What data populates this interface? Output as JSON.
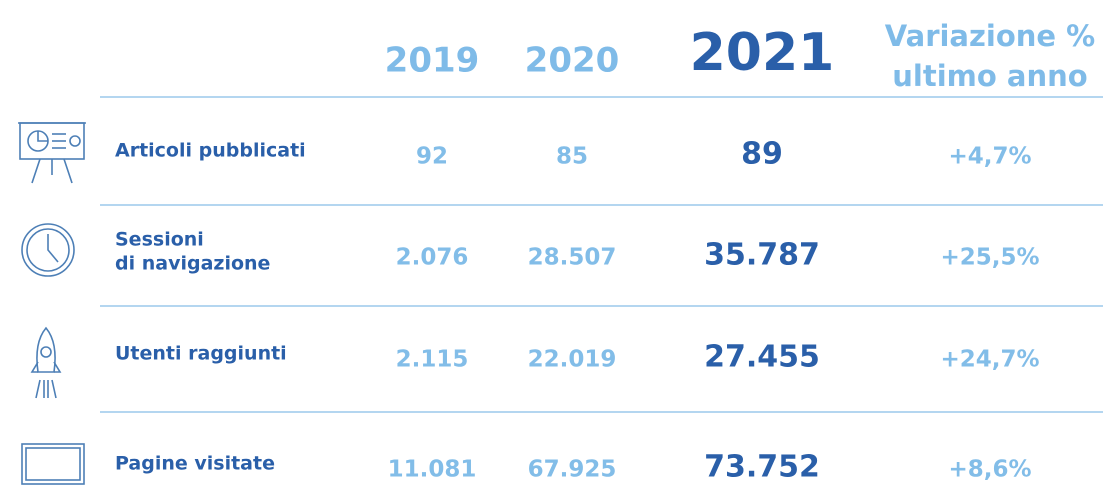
{
  "table": {
    "header": [
      "2019",
      "2020",
      "2021",
      [
        "Variazione %",
        "ultimo anno"
      ]
    ],
    "rows": [
      [
        [
          "Articoli pubblicati"
        ],
        "92",
        "85",
        "89",
        "+4,7%"
      ],
      [
        [
          "Sessioni",
          "di navigazione"
        ],
        "2.076",
        "28.507",
        "35.787",
        "+25,5%"
      ],
      [
        [
          "Utenti raggiunti"
        ],
        "2.115",
        "22.019",
        "27.455",
        "+24,7%"
      ],
      [
        [
          "Pagine visitate"
        ],
        "11.081",
        "67.925",
        "73.752",
        "+8,6%"
      ]
    ]
  }
}
